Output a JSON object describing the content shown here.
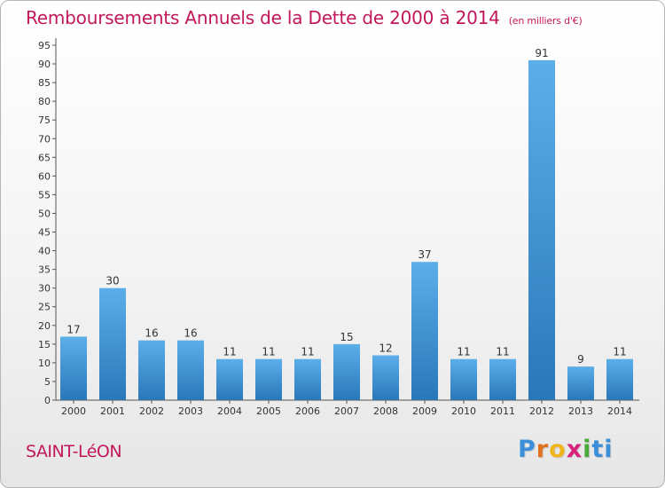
{
  "page": {
    "title": "Remboursements Annuels de la Dette de 2000 à 2014",
    "unit": "(en milliers d'€)",
    "commune": "SAINT-LéON",
    "logo": "Proxiti"
  },
  "colors": {
    "accent": "#c2185b",
    "bar_top": "#5caee9",
    "bar_bottom": "#2a77b8"
  },
  "chart_data": {
    "type": "bar",
    "title": "Remboursements Annuels de la Dette de 2000 à 2014",
    "subtitle": "(en milliers d'€)",
    "xlabel": "",
    "ylabel": "",
    "categories": [
      "2000",
      "2001",
      "2002",
      "2003",
      "2004",
      "2005",
      "2006",
      "2007",
      "2008",
      "2009",
      "2010",
      "2011",
      "2012",
      "2013",
      "2014"
    ],
    "values": [
      17,
      30,
      16,
      16,
      11,
      11,
      11,
      15,
      12,
      37,
      11,
      11,
      91,
      9,
      11
    ],
    "ylim": [
      0,
      95
    ],
    "ytick_step": 5,
    "grid": false,
    "data_labels": true,
    "legend": "none"
  }
}
